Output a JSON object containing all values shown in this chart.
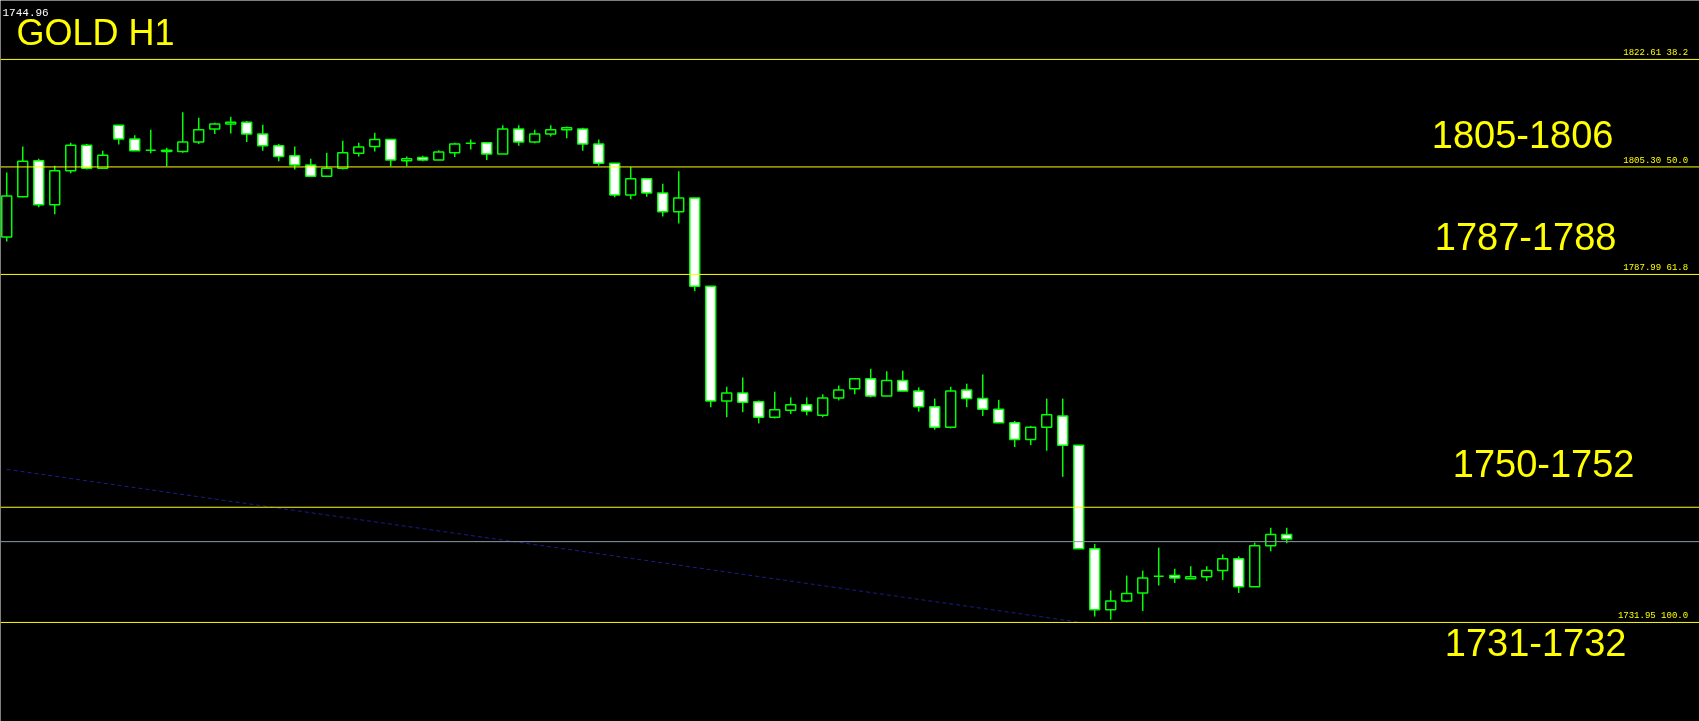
{
  "chart_data": {
    "type": "candlestick",
    "title": "GOLD H1",
    "categories": [
      null,
      null,
      null,
      null,
      null,
      null,
      null,
      null,
      null,
      null,
      null,
      null,
      null,
      null,
      null,
      null,
      null,
      null,
      null,
      null,
      null,
      null,
      null,
      null,
      null,
      null,
      null,
      null,
      null,
      null,
      null,
      null,
      null,
      null,
      null,
      null,
      null,
      null,
      null,
      null,
      null,
      null,
      null,
      null,
      null,
      null,
      null,
      null,
      null,
      null,
      null,
      null,
      null,
      null,
      null,
      null,
      null,
      null,
      null,
      null,
      null,
      null,
      null,
      null,
      null,
      null,
      null,
      null,
      null,
      null,
      null,
      null,
      null,
      null,
      null,
      null,
      null,
      null,
      null,
      null,
      null
    ],
    "ohlc": [
      [
        1794.0,
        1804.4,
        1793.3,
        1800.6
      ],
      [
        1800.5,
        1808.6,
        1800.4,
        1806.2
      ],
      [
        1806.3,
        1806.6,
        1798.8,
        1799.2
      ],
      [
        1799.2,
        1805.5,
        1797.7,
        1804.7
      ],
      [
        1804.7,
        1809.2,
        1804.3,
        1808.8
      ],
      [
        1808.8,
        1809.0,
        1804.9,
        1805.1
      ],
      [
        1805.1,
        1807.9,
        1805.1,
        1807.2
      ],
      [
        1812.0,
        1812.0,
        1808.9,
        1809.8
      ],
      [
        1809.8,
        1810.4,
        1807.9,
        1807.9
      ],
      [
        1808.0,
        1811.3,
        1807.5,
        1808.0
      ],
      [
        1807.8,
        1808.4,
        1805.4,
        1808.0
      ],
      [
        1807.8,
        1814.1,
        1807.6,
        1809.3
      ],
      [
        1809.3,
        1813.2,
        1809.0,
        1811.3
      ],
      [
        1811.4,
        1812.4,
        1810.6,
        1812.2
      ],
      [
        1812.2,
        1813.4,
        1810.7,
        1812.5
      ],
      [
        1812.5,
        1812.7,
        1809.3,
        1810.6
      ],
      [
        1810.6,
        1812.1,
        1807.9,
        1808.7
      ],
      [
        1808.7,
        1809.0,
        1806.2,
        1807.0
      ],
      [
        1807.1,
        1808.6,
        1804.9,
        1805.6
      ],
      [
        1805.6,
        1806.6,
        1803.8,
        1803.8
      ],
      [
        1803.8,
        1807.6,
        1803.8,
        1805.1
      ],
      [
        1805.1,
        1809.5,
        1804.9,
        1807.6
      ],
      [
        1807.5,
        1809.2,
        1807.0,
        1808.5
      ],
      [
        1808.6,
        1810.8,
        1807.8,
        1809.7
      ],
      [
        1809.7,
        1809.8,
        1805.4,
        1806.4
      ],
      [
        1806.3,
        1807.0,
        1805.4,
        1806.6
      ],
      [
        1806.8,
        1807.1,
        1806.2,
        1806.4
      ],
      [
        1806.4,
        1808.0,
        1806.4,
        1807.7
      ],
      [
        1807.6,
        1809.2,
        1806.9,
        1809.0
      ],
      [
        1809.1,
        1809.7,
        1808.1,
        1809.1
      ],
      [
        1809.2,
        1809.2,
        1806.4,
        1807.4
      ],
      [
        1807.4,
        1812.0,
        1807.4,
        1811.4
      ],
      [
        1811.4,
        1812.0,
        1808.7,
        1809.3
      ],
      [
        1809.3,
        1811.3,
        1809.1,
        1810.6
      ],
      [
        1810.6,
        1812.0,
        1810.2,
        1811.3
      ],
      [
        1811.3,
        1811.8,
        1809.9,
        1811.6
      ],
      [
        1811.4,
        1811.6,
        1807.9,
        1809.0
      ],
      [
        1809.0,
        1809.7,
        1805.5,
        1805.9
      ],
      [
        1805.9,
        1805.9,
        1800.4,
        1800.8
      ],
      [
        1800.8,
        1805.3,
        1800.1,
        1803.4
      ],
      [
        1803.4,
        1803.5,
        1800.5,
        1801.1
      ],
      [
        1801.1,
        1802.6,
        1797.3,
        1798.1
      ],
      [
        1798.1,
        1804.6,
        1796.2,
        1800.3
      ],
      [
        1800.3,
        1800.3,
        1785.3,
        1786.1
      ],
      [
        1786.1,
        1786.1,
        1766.6,
        1767.6
      ],
      [
        1767.6,
        1769.9,
        1765.0,
        1768.9
      ],
      [
        1768.9,
        1771.4,
        1765.8,
        1767.4
      ],
      [
        1767.5,
        1767.7,
        1764.0,
        1765.0
      ],
      [
        1765.0,
        1769.1,
        1764.8,
        1766.2
      ],
      [
        1766.1,
        1768.2,
        1765.5,
        1767.0
      ],
      [
        1767.0,
        1768.2,
        1765.3,
        1766.0
      ],
      [
        1765.3,
        1768.7,
        1765.0,
        1768.1
      ],
      [
        1768.1,
        1770.1,
        1767.7,
        1769.4
      ],
      [
        1769.6,
        1771.2,
        1768.7,
        1771.2
      ],
      [
        1771.2,
        1772.8,
        1768.2,
        1768.4
      ],
      [
        1768.4,
        1772.4,
        1768.4,
        1770.9
      ],
      [
        1770.9,
        1772.5,
        1769.2,
        1769.2
      ],
      [
        1769.2,
        1769.8,
        1765.9,
        1766.7
      ],
      [
        1766.7,
        1768.0,
        1763.0,
        1763.4
      ],
      [
        1763.4,
        1769.9,
        1763.2,
        1769.2
      ],
      [
        1769.4,
        1770.4,
        1766.6,
        1768.0
      ],
      [
        1768.0,
        1771.9,
        1765.2,
        1766.3
      ],
      [
        1766.3,
        1767.8,
        1764.1,
        1764.1
      ],
      [
        1764.1,
        1764.4,
        1760.2,
        1761.4
      ],
      [
        1761.4,
        1763.6,
        1760.5,
        1763.4
      ],
      [
        1763.4,
        1768.0,
        1759.6,
        1765.4
      ],
      [
        1765.2,
        1768.0,
        1755.4,
        1760.5
      ],
      [
        1760.5,
        1760.5,
        1743.8,
        1743.8
      ],
      [
        1743.8,
        1744.6,
        1732.9,
        1734.0
      ],
      [
        1734.0,
        1737.1,
        1732.4,
        1735.4
      ],
      [
        1735.4,
        1739.5,
        1735.2,
        1736.6
      ],
      [
        1736.7,
        1740.3,
        1733.8,
        1739.1
      ],
      [
        1739.4,
        1744.0,
        1737.9,
        1739.4
      ],
      [
        1739.5,
        1740.6,
        1738.3,
        1739.1
      ],
      [
        1739.0,
        1741.0,
        1739.0,
        1739.3
      ],
      [
        1739.3,
        1741.0,
        1738.6,
        1740.3
      ],
      [
        1740.3,
        1742.9,
        1738.8,
        1742.2
      ],
      [
        1742.2,
        1742.6,
        1736.7,
        1737.7
      ],
      [
        1737.7,
        1744.8,
        1737.7,
        1744.3
      ],
      [
        1744.3,
        1747.2,
        1743.4,
        1746.1
      ],
      [
        1746.1,
        1747.2,
        1744.7,
        1745.4
      ]
    ],
    "series": [
      {
        "type": "line",
        "values": [
          1756.6,
          null,
          null,
          null,
          null,
          null,
          null,
          null,
          null,
          null,
          null,
          null,
          null,
          null,
          null,
          null,
          null,
          null,
          null,
          null,
          null,
          null,
          null,
          null,
          null,
          null,
          null,
          null,
          null,
          null,
          null,
          null,
          null,
          null,
          null,
          null,
          null,
          null,
          null,
          null,
          null,
          null,
          null,
          null,
          null,
          null,
          null,
          null,
          null,
          null,
          null,
          null,
          null,
          null,
          null,
          null,
          null,
          null,
          null,
          null,
          null,
          null,
          null,
          null,
          null,
          null,
          null,
          1732.0,
          null,
          null,
          null,
          null,
          null,
          null,
          null,
          null,
          null,
          null,
          null,
          null,
          null
        ],
        "color": "#1c1c8f",
        "line_style": "dashed"
      }
    ],
    "ylim": [
      1716.0,
      1832.1
    ],
    "tick_labels": false,
    "grid": false,
    "ref_lines": [
      {
        "axis": "y",
        "value": 1822.61,
        "label": "1822.61  38.2",
        "color": "#ffff00"
      },
      {
        "axis": "y",
        "value": 1805.3,
        "label": "1805.30  50.0",
        "color": "#ffff00"
      },
      {
        "axis": "y",
        "value": 1787.99,
        "label": "1787.99  61.8",
        "color": "#ffff00"
      },
      {
        "axis": "y",
        "value": 1750.5,
        "color": "#ffff00"
      },
      {
        "axis": "y",
        "value": 1744.96,
        "color": "#8c9aa8"
      },
      {
        "axis": "y",
        "value": 1731.95,
        "label": "1731.95  100.0",
        "color": "#ffff00"
      }
    ],
    "annotations": [
      "1744.96",
      "1805-1806",
      "1787-1788",
      "1750-1752",
      "1731-1732"
    ]
  }
}
